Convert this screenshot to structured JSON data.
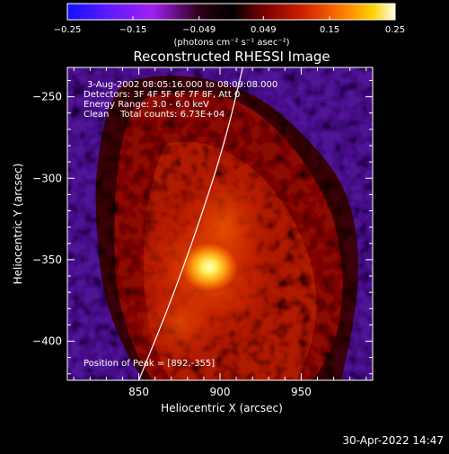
{
  "colorbar": {
    "ticks": [
      "-0.25",
      "-0.15",
      "-0.049",
      "0.049",
      "0.15",
      "0.25"
    ],
    "tick_values": [
      -0.25,
      -0.15,
      -0.049,
      0.049,
      0.15,
      0.25
    ],
    "units_label": "(photons cm⁻² s⁻¹ asec⁻²)"
  },
  "chart_data": {
    "type": "heatmap",
    "title": "Reconstructed RHESSI Image",
    "xlabel": "Heliocentric X (arcsec)",
    "ylabel": "Heliocentric Y (arcsec)",
    "x_ticks": [
      850,
      900,
      950
    ],
    "y_ticks": [
      -250,
      -300,
      -350,
      -400
    ],
    "xlim": [
      806,
      994
    ],
    "ylim": [
      -424,
      -232
    ],
    "color_range": [
      -0.25,
      0.25
    ],
    "colormap": "RHESSI color table: blue-violet (negative) through black, red, orange to white (positive)",
    "peak": {
      "x": 892,
      "y": -355
    },
    "limb_curve": [
      [
        850,
        -424
      ],
      [
        872,
        -370
      ],
      [
        893,
        -310
      ],
      [
        905,
        -270
      ],
      [
        914,
        -232
      ]
    ],
    "annotations": [
      "3-Aug-2002 08:05:16.000 to 08:09:08.000",
      "Detectors: 3F 4F 5F 6F 7F 8F, Att 0",
      "Energy Range: 3.0 - 6.0 keV",
      "Clean    Total counts: 6.73E+04"
    ],
    "peak_label": "Position of Peak = [892,-355]"
  },
  "footer": {
    "timestamp": "30-Apr-2022 14:47"
  }
}
